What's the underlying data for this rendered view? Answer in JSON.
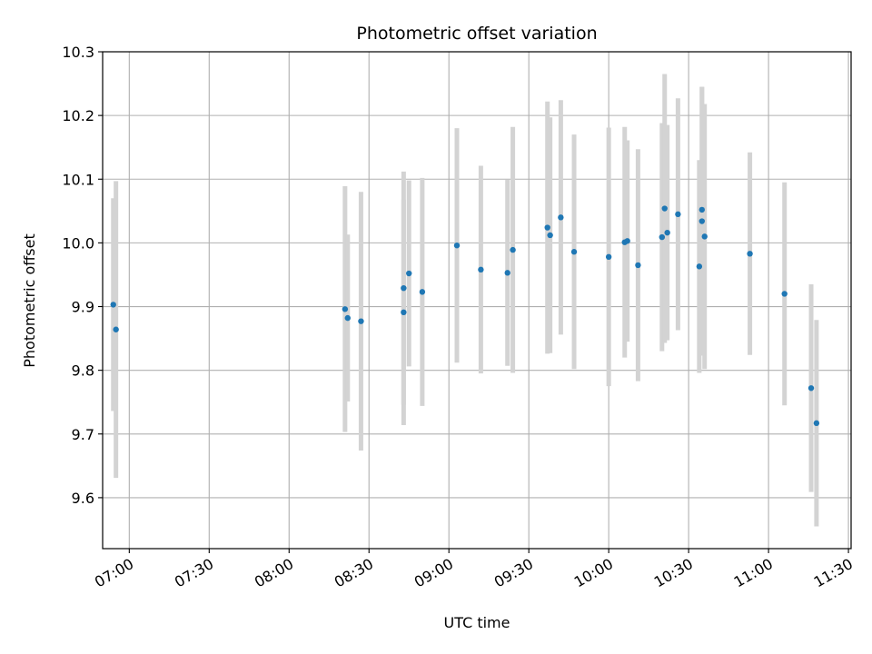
{
  "chart_data": {
    "type": "scatter",
    "title": "Photometric offset variation",
    "xlabel": "UTC time",
    "ylabel": "Photometric offset",
    "xlim": [
      "06:50",
      "11:31"
    ],
    "ylim": [
      9.52,
      10.3
    ],
    "grid": true,
    "x_ticks": [
      "07:00",
      "07:30",
      "08:00",
      "08:30",
      "09:00",
      "09:30",
      "10:00",
      "10:30",
      "11:00",
      "11:30"
    ],
    "y_ticks": [
      9.6,
      9.7,
      9.8,
      9.9,
      10.0,
      10.1,
      10.2,
      10.3
    ],
    "y_tick_labels": [
      "9.6",
      "9.7",
      "9.8",
      "9.9",
      "10.0",
      "10.1",
      "10.2",
      "10.3"
    ],
    "point_color": "#1f77b4",
    "errorbar_color": "#d3d3d3",
    "points": [
      {
        "x": "06:54",
        "y": 9.903,
        "err": 0.167
      },
      {
        "x": "06:55",
        "y": 9.864,
        "err": 0.233
      },
      {
        "x": "08:21",
        "y": 9.896,
        "err": 0.193
      },
      {
        "x": "08:22",
        "y": 9.882,
        "err": 0.131
      },
      {
        "x": "08:27",
        "y": 9.877,
        "err": 0.203
      },
      {
        "x": "08:43",
        "y": 9.929,
        "err": 0.183
      },
      {
        "x": "08:43",
        "y": 9.891,
        "err": 0.177
      },
      {
        "x": "08:45",
        "y": 9.952,
        "err": 0.146
      },
      {
        "x": "08:50",
        "y": 9.923,
        "err": 0.179
      },
      {
        "x": "09:03",
        "y": 9.996,
        "err": 0.184
      },
      {
        "x": "09:12",
        "y": 9.958,
        "err": 0.163
      },
      {
        "x": "09:22",
        "y": 9.953,
        "err": 0.146
      },
      {
        "x": "09:24",
        "y": 9.989,
        "err": 0.193
      },
      {
        "x": "09:37",
        "y": 10.024,
        "err": 0.198
      },
      {
        "x": "09:38",
        "y": 10.012,
        "err": 0.185
      },
      {
        "x": "09:42",
        "y": 10.04,
        "err": 0.184
      },
      {
        "x": "09:47",
        "y": 9.986,
        "err": 0.184
      },
      {
        "x": "10:00",
        "y": 9.978,
        "err": 0.203
      },
      {
        "x": "10:06",
        "y": 10.001,
        "err": 0.181
      },
      {
        "x": "10:07",
        "y": 10.003,
        "err": 0.158
      },
      {
        "x": "10:11",
        "y": 9.965,
        "err": 0.182
      },
      {
        "x": "10:20",
        "y": 10.009,
        "err": 0.179
      },
      {
        "x": "10:21",
        "y": 10.054,
        "err": 0.211
      },
      {
        "x": "10:22",
        "y": 10.016,
        "err": 0.169
      },
      {
        "x": "10:26",
        "y": 10.045,
        "err": 0.182
      },
      {
        "x": "10:34",
        "y": 9.963,
        "err": 0.167
      },
      {
        "x": "10:35",
        "y": 10.034,
        "err": 0.211
      },
      {
        "x": "10:35",
        "y": 10.052,
        "err": 0.193
      },
      {
        "x": "10:36",
        "y": 10.01,
        "err": 0.208
      },
      {
        "x": "10:53",
        "y": 9.983,
        "err": 0.159
      },
      {
        "x": "11:06",
        "y": 9.92,
        "err": 0.175
      },
      {
        "x": "11:16",
        "y": 9.772,
        "err": 0.163
      },
      {
        "x": "11:18",
        "y": 9.717,
        "err": 0.162
      }
    ]
  }
}
